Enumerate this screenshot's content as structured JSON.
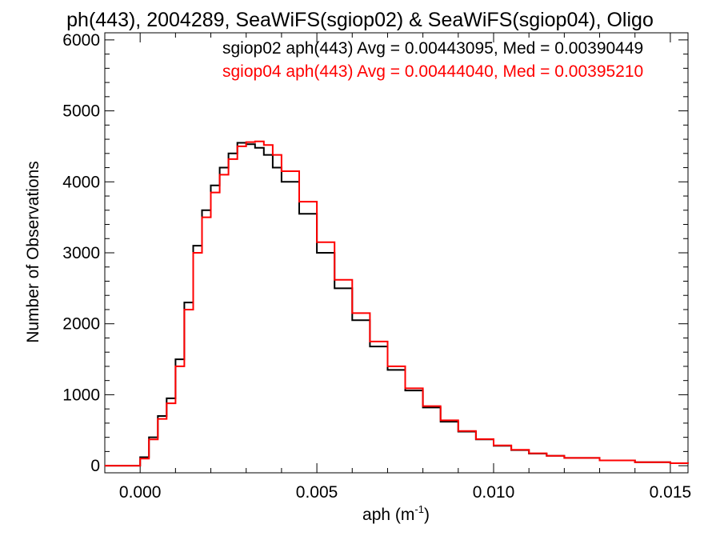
{
  "chart_data": {
    "type": "line",
    "step": true,
    "title": "ph(443), 2004289, SeaWiFS(sgiop02) & SeaWiFS(sgiop04), Oligo",
    "xlabel": {
      "base": "aph (m",
      "sup": "-1",
      "tail": ")"
    },
    "ylabel": "Number of Observations",
    "xlim": [
      -0.001,
      0.0155
    ],
    "ylim": [
      -100,
      6100
    ],
    "xticks": [
      0.0,
      0.005,
      0.01,
      0.015
    ],
    "xtick_labels": [
      "0.000",
      "0.005",
      "0.010",
      "0.015"
    ],
    "yticks": [
      0,
      1000,
      2000,
      3000,
      4000,
      5000,
      6000
    ],
    "ytick_labels": [
      "0",
      "1000",
      "2000",
      "3000",
      "4000",
      "5000",
      "6000"
    ],
    "grid": false,
    "annotations": [
      {
        "text": "sgiop02 aph(443) Avg = 0.00443095, Med = 0.00390449",
        "color": "#000000"
      },
      {
        "text": "sgiop04 aph(443) Avg = 0.00444040, Med = 0.00395210",
        "color": "#ff0000"
      }
    ],
    "series": [
      {
        "name": "sgiop02",
        "color": "#000000",
        "x": [
          -0.001,
          -0.0005,
          0.0,
          0.00025,
          0.0005,
          0.00075,
          0.001,
          0.00125,
          0.0015,
          0.00175,
          0.002,
          0.00225,
          0.0025,
          0.00275,
          0.003,
          0.00325,
          0.0035,
          0.00375,
          0.004,
          0.0045,
          0.005,
          0.0055,
          0.006,
          0.0065,
          0.007,
          0.0075,
          0.008,
          0.0085,
          0.009,
          0.0095,
          0.01,
          0.0105,
          0.011,
          0.0115,
          0.012,
          0.013,
          0.014,
          0.015,
          0.0155
        ],
        "y": [
          0,
          0,
          120,
          400,
          700,
          950,
          1500,
          2300,
          3100,
          3600,
          3950,
          4200,
          4400,
          4550,
          4530,
          4480,
          4380,
          4200,
          4000,
          3550,
          3000,
          2500,
          2050,
          1680,
          1350,
          1060,
          820,
          620,
          480,
          370,
          280,
          220,
          170,
          140,
          110,
          75,
          50,
          35,
          30
        ]
      },
      {
        "name": "sgiop04",
        "color": "#ff0000",
        "x": [
          -0.001,
          -0.0005,
          0.0,
          0.00025,
          0.0005,
          0.00075,
          0.001,
          0.00125,
          0.0015,
          0.00175,
          0.002,
          0.00225,
          0.0025,
          0.00275,
          0.003,
          0.00325,
          0.0035,
          0.00375,
          0.004,
          0.0045,
          0.005,
          0.0055,
          0.006,
          0.0065,
          0.007,
          0.0075,
          0.008,
          0.0085,
          0.009,
          0.0095,
          0.01,
          0.0105,
          0.011,
          0.0115,
          0.012,
          0.013,
          0.014,
          0.015,
          0.0155
        ],
        "y": [
          0,
          0,
          100,
          370,
          660,
          880,
          1400,
          2200,
          3000,
          3500,
          3850,
          4100,
          4320,
          4500,
          4560,
          4570,
          4520,
          4380,
          4150,
          3720,
          3150,
          2620,
          2150,
          1750,
          1400,
          1090,
          840,
          640,
          490,
          375,
          285,
          225,
          175,
          140,
          110,
          75,
          50,
          35,
          30
        ]
      }
    ]
  }
}
